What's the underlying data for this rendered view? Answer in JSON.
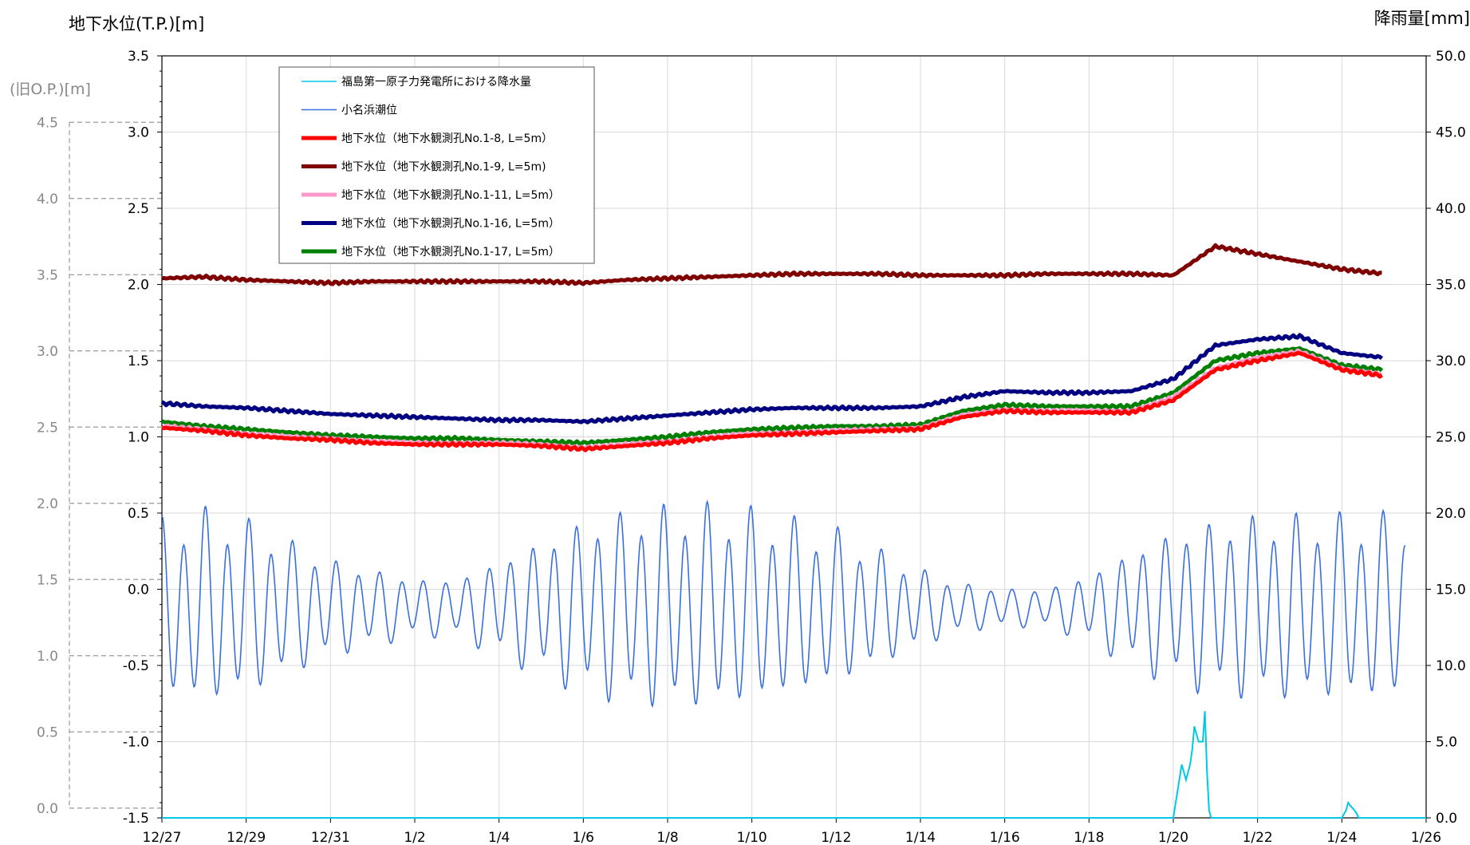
{
  "chart_data": {
    "type": "line",
    "y_left_title": "地下水位(T.P.)[m]",
    "y_left2_title": "(旧O.P.)[m]",
    "y_right_title": "降雨量[mm]",
    "y_left_ticks": [
      "3.5",
      "3.0",
      "2.5",
      "2.0",
      "1.5",
      "1.0",
      "0.5",
      "0.0",
      "-0.5",
      "-1.0",
      "-1.5"
    ],
    "y_left2_ticks": [
      "4.5",
      "4.0",
      "3.5",
      "3.0",
      "2.5",
      "2.0",
      "1.5",
      "1.0",
      "0.5",
      "0.0"
    ],
    "y_right_ticks": [
      "50.0",
      "45.0",
      "40.0",
      "35.0",
      "30.0",
      "25.0",
      "20.0",
      "15.0",
      "10.0",
      "5.0",
      "0.0"
    ],
    "x_ticks": [
      "12/27",
      "12/29",
      "12/31",
      "1/2",
      "1/4",
      "1/6",
      "1/8",
      "1/10",
      "1/12",
      "1/14",
      "1/16",
      "1/18",
      "1/20",
      "1/22",
      "1/24",
      "1/26"
    ],
    "ylim_left": [
      -1.5,
      3.5
    ],
    "ylim_left2": [
      0.0,
      4.5
    ],
    "ylim_right": [
      0.0,
      50.0
    ],
    "xlim_days": [
      0,
      30
    ],
    "grid": true,
    "legend_position": "top-left",
    "colors": {
      "rain": "#00c8e6",
      "tide": "#3a6fe0",
      "no1_8": "#ff0000",
      "no1_9": "#7f0000",
      "no1_11": "#ff99cc",
      "no1_16": "#000080",
      "no1_17": "#008000"
    },
    "legend": [
      {
        "key": "rain",
        "label": "福島第一原子力発電所における降水量"
      },
      {
        "key": "tide",
        "label": "小名浜潮位"
      },
      {
        "key": "no1_8",
        "label": "地下水位（地下水観測孔No.1-8, L=5m）"
      },
      {
        "key": "no1_9",
        "label": "地下水位（地下水観測孔No.1-9, L=5m)"
      },
      {
        "key": "no1_11",
        "label": "地下水位（地下水観測孔No.1-11, L=5m）"
      },
      {
        "key": "no1_16",
        "label": "地下水位（地下水観測孔No.1-16, L=5m）"
      },
      {
        "key": "no1_17",
        "label": "地下水位（地下水観測孔No.1-17, L=5m）"
      }
    ],
    "series": [
      {
        "key": "no1_9",
        "x": [
          0,
          1,
          2,
          3,
          4,
          5,
          6,
          7,
          8,
          9,
          10,
          11,
          12,
          13,
          14,
          15,
          16,
          17,
          18,
          19,
          20,
          21,
          22,
          23,
          24,
          25,
          26,
          27,
          28,
          29
        ],
        "values": [
          2.04,
          2.05,
          2.03,
          2.02,
          2.01,
          2.02,
          2.02,
          2.02,
          2.02,
          2.02,
          2.01,
          2.03,
          2.04,
          2.05,
          2.06,
          2.07,
          2.07,
          2.07,
          2.06,
          2.06,
          2.06,
          2.07,
          2.07,
          2.07,
          2.06,
          2.25,
          2.2,
          2.15,
          2.1,
          2.07
        ]
      },
      {
        "key": "no1_16",
        "x": [
          0,
          1,
          2,
          3,
          4,
          5,
          6,
          7,
          8,
          9,
          10,
          11,
          12,
          13,
          14,
          15,
          16,
          17,
          18,
          19,
          20,
          21,
          22,
          23,
          24,
          25,
          26,
          27,
          28,
          29
        ],
        "values": [
          1.22,
          1.2,
          1.19,
          1.17,
          1.15,
          1.14,
          1.13,
          1.12,
          1.11,
          1.11,
          1.1,
          1.12,
          1.14,
          1.16,
          1.18,
          1.19,
          1.19,
          1.19,
          1.2,
          1.26,
          1.3,
          1.29,
          1.29,
          1.3,
          1.38,
          1.6,
          1.64,
          1.66,
          1.55,
          1.52
        ]
      },
      {
        "key": "no1_17",
        "x": [
          0,
          1,
          2,
          3,
          4,
          5,
          6,
          7,
          8,
          9,
          10,
          11,
          12,
          13,
          14,
          15,
          16,
          17,
          18,
          19,
          20,
          21,
          22,
          23,
          24,
          25,
          26,
          27,
          28,
          29
        ],
        "values": [
          1.1,
          1.07,
          1.05,
          1.03,
          1.01,
          1.0,
          0.99,
          0.99,
          0.98,
          0.97,
          0.96,
          0.98,
          1.0,
          1.03,
          1.05,
          1.06,
          1.07,
          1.07,
          1.08,
          1.17,
          1.21,
          1.2,
          1.2,
          1.2,
          1.29,
          1.5,
          1.55,
          1.58,
          1.47,
          1.44
        ]
      },
      {
        "key": "no1_11",
        "x": [
          0,
          1,
          2,
          3,
          4,
          5,
          6,
          7,
          8,
          9,
          10,
          11,
          12,
          13,
          14,
          15,
          16,
          17,
          18,
          19,
          20,
          21,
          22,
          23,
          24,
          25,
          26,
          27,
          28,
          29
        ],
        "values": [
          1.07,
          1.05,
          1.02,
          1.0,
          0.99,
          0.97,
          0.96,
          0.96,
          0.96,
          0.95,
          0.93,
          0.95,
          0.97,
          1.0,
          1.02,
          1.03,
          1.04,
          1.05,
          1.06,
          1.14,
          1.18,
          1.17,
          1.17,
          1.17,
          1.26,
          1.45,
          1.52,
          1.56,
          1.45,
          1.41
        ]
      },
      {
        "key": "no1_8",
        "x": [
          0,
          1,
          2,
          3,
          4,
          5,
          6,
          7,
          8,
          9,
          10,
          11,
          12,
          13,
          14,
          15,
          16,
          17,
          18,
          19,
          20,
          21,
          22,
          23,
          24,
          25,
          26,
          27,
          28,
          29
        ],
        "values": [
          1.06,
          1.04,
          1.01,
          0.99,
          0.98,
          0.96,
          0.95,
          0.95,
          0.95,
          0.94,
          0.92,
          0.94,
          0.96,
          0.99,
          1.01,
          1.02,
          1.03,
          1.04,
          1.05,
          1.13,
          1.17,
          1.16,
          1.16,
          1.16,
          1.24,
          1.44,
          1.5,
          1.55,
          1.44,
          1.4
        ]
      }
    ],
    "tide": {
      "amplitude_by_day": [
        0.9,
        1.0,
        0.9,
        0.7,
        0.5,
        0.4,
        0.3,
        0.3,
        0.5,
        0.7,
        0.9,
        1.0,
        1.05,
        1.05,
        1.0,
        0.9,
        0.8,
        0.6,
        0.4,
        0.25,
        0.2,
        0.2,
        0.35,
        0.6,
        0.8,
        0.9,
        0.95,
        0.95,
        0.95,
        0.95,
        0.95
      ],
      "mean": -0.12
    },
    "rain": {
      "x": [
        0,
        24.0,
        24.2,
        24.3,
        24.4,
        24.45,
        24.5,
        24.6,
        24.7,
        24.75,
        24.8,
        24.85,
        24.9,
        25.0,
        28.0,
        28.1,
        28.15,
        28.2,
        28.3,
        28.35,
        28.4,
        30
      ],
      "values": [
        0,
        0,
        3.5,
        2.5,
        3.5,
        4.5,
        6.0,
        5.0,
        5.0,
        7.0,
        3.0,
        0.5,
        0,
        0,
        0,
        0.5,
        1.0,
        0.8,
        0.5,
        0.3,
        0,
        0
      ]
    }
  }
}
